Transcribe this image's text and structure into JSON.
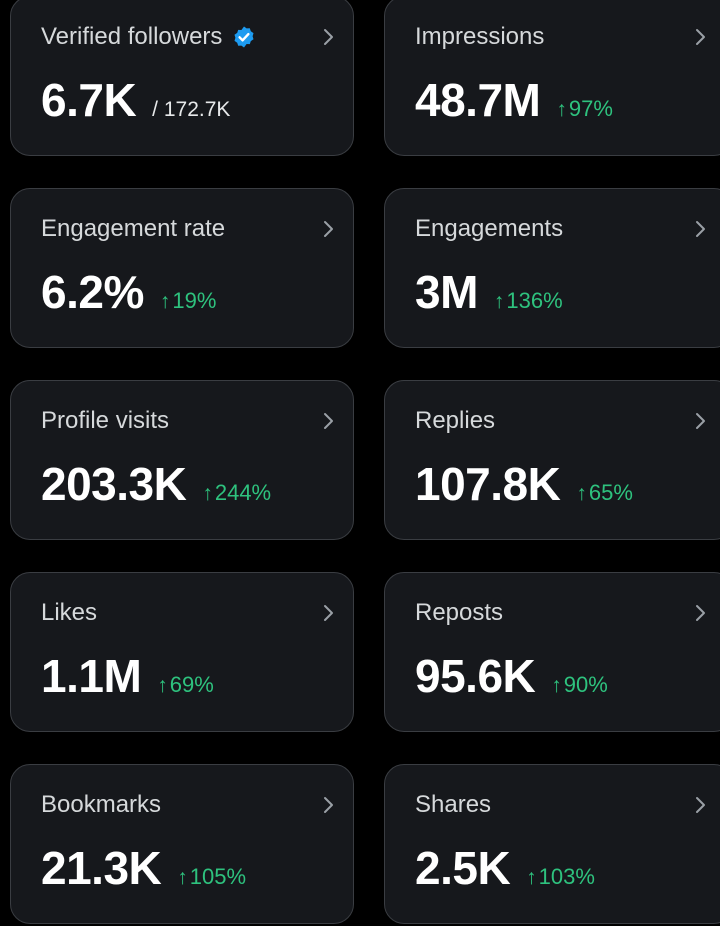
{
  "colors": {
    "background": "#000000",
    "card": "#16181c",
    "positive": "#2ec27e",
    "verified": "#1d9bf0"
  },
  "cards": [
    {
      "label": "Verified followers",
      "value": "6.7K",
      "total": "/ 172.7K",
      "icon": "verified-badge-icon"
    },
    {
      "label": "Impressions",
      "value": "48.7M",
      "arrow": "↑",
      "change": "97%"
    },
    {
      "label": "Engagement rate",
      "value": "6.2%",
      "arrow": "↑",
      "change": "19%"
    },
    {
      "label": "Engagements",
      "value": "3M",
      "arrow": "↑",
      "change": "136%"
    },
    {
      "label": "Profile visits",
      "value": "203.3K",
      "arrow": "↑",
      "change": "244%"
    },
    {
      "label": "Replies",
      "value": "107.8K",
      "arrow": "↑",
      "change": "65%"
    },
    {
      "label": "Likes",
      "value": "1.1M",
      "arrow": "↑",
      "change": "69%"
    },
    {
      "label": "Reposts",
      "value": "95.6K",
      "arrow": "↑",
      "change": "90%"
    },
    {
      "label": "Bookmarks",
      "value": "21.3K",
      "arrow": "↑",
      "change": "105%"
    },
    {
      "label": "Shares",
      "value": "2.5K",
      "arrow": "↑",
      "change": "103%"
    }
  ]
}
